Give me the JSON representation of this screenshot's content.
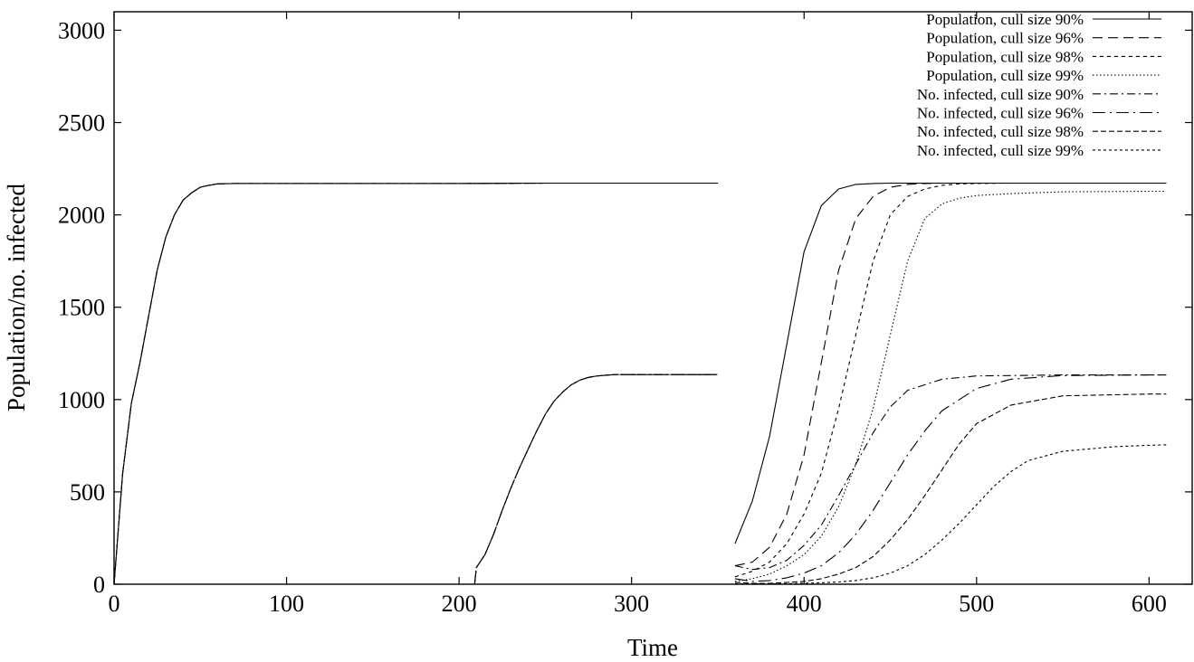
{
  "chart_data": {
    "type": "line",
    "title": "",
    "xlabel": "Time",
    "ylabel": "Population/no. infected",
    "xlim": [
      0,
      625
    ],
    "ylim": [
      0,
      3100
    ],
    "xticks": [
      0,
      100,
      200,
      300,
      400,
      500,
      600
    ],
    "yticks": [
      0,
      500,
      1000,
      1500,
      2000,
      2500,
      3000
    ],
    "grid": false,
    "legend_position": "top-right",
    "series": [
      {
        "name": "Population, cull size 90%",
        "dash": "none",
        "x": [
          0,
          5,
          10,
          15,
          20,
          25,
          30,
          35,
          40,
          45,
          50,
          55,
          60,
          70,
          80,
          100,
          150,
          200,
          250,
          300,
          350,
          350,
          360,
          370,
          380,
          390,
          400,
          410,
          420,
          430,
          440,
          450,
          500,
          550,
          600,
          610
        ],
        "y": [
          0,
          600,
          980,
          1200,
          1450,
          1700,
          1880,
          2000,
          2080,
          2120,
          2150,
          2160,
          2168,
          2170,
          2170,
          2170,
          2170,
          2170,
          2172,
          2172,
          2172,
          null,
          220,
          450,
          800,
          1300,
          1800,
          2050,
          2140,
          2165,
          2170,
          2172,
          2172,
          2172,
          2172,
          2172
        ]
      },
      {
        "name": "Population, cull size 96%",
        "dash": "11,6",
        "x": [
          0,
          5,
          10,
          15,
          20,
          25,
          30,
          35,
          40,
          45,
          50,
          55,
          60,
          70,
          80,
          100,
          150,
          200,
          250,
          300,
          350,
          350,
          360,
          370,
          380,
          390,
          400,
          410,
          420,
          430,
          440,
          450,
          460,
          470,
          480,
          500,
          550,
          600,
          610
        ],
        "y": [
          0,
          600,
          980,
          1200,
          1450,
          1700,
          1880,
          2000,
          2080,
          2120,
          2150,
          2160,
          2168,
          2170,
          2170,
          2170,
          2170,
          2170,
          2172,
          2172,
          2172,
          null,
          100,
          120,
          200,
          380,
          700,
          1200,
          1700,
          1980,
          2100,
          2150,
          2165,
          2170,
          2172,
          2172,
          2172,
          2172,
          2172
        ]
      },
      {
        "name": "Population, cull size 98%",
        "dash": "4,4",
        "x": [
          0,
          5,
          10,
          15,
          20,
          25,
          30,
          35,
          40,
          45,
          50,
          55,
          60,
          70,
          80,
          100,
          150,
          200,
          250,
          300,
          350,
          350,
          360,
          370,
          380,
          390,
          400,
          410,
          420,
          430,
          440,
          450,
          460,
          470,
          480,
          490,
          500,
          520,
          550,
          600,
          610
        ],
        "y": [
          0,
          600,
          980,
          1200,
          1450,
          1700,
          1880,
          2000,
          2080,
          2120,
          2150,
          2160,
          2168,
          2170,
          2170,
          2170,
          2170,
          2170,
          2172,
          2172,
          2172,
          null,
          40,
          70,
          120,
          220,
          380,
          600,
          950,
          1350,
          1750,
          2000,
          2100,
          2140,
          2160,
          2168,
          2170,
          2172,
          2172,
          2172,
          2172
        ]
      },
      {
        "name": "Population, cull size 99%",
        "dash": "1.5,2.5",
        "x": [
          0,
          5,
          10,
          15,
          20,
          25,
          30,
          35,
          40,
          45,
          50,
          55,
          60,
          70,
          80,
          100,
          150,
          200,
          250,
          300,
          350,
          350,
          360,
          370,
          380,
          390,
          400,
          410,
          420,
          430,
          440,
          450,
          460,
          470,
          480,
          490,
          500,
          520,
          550,
          600,
          610
        ],
        "y": [
          0,
          600,
          980,
          1200,
          1450,
          1700,
          1880,
          2000,
          2080,
          2120,
          2150,
          2160,
          2168,
          2170,
          2170,
          2170,
          2170,
          2170,
          2172,
          2172,
          2172,
          null,
          15,
          30,
          55,
          100,
          160,
          260,
          420,
          650,
          950,
          1350,
          1750,
          1980,
          2060,
          2090,
          2105,
          2115,
          2125,
          2128,
          2128
        ]
      },
      {
        "name": "No. infected, cull size 90%",
        "dash": "9,4,2,4",
        "x": [
          209,
          210,
          215,
          220,
          225,
          230,
          235,
          240,
          245,
          250,
          255,
          260,
          265,
          270,
          275,
          280,
          290,
          300,
          320,
          350,
          350,
          360,
          370,
          380,
          390,
          400,
          410,
          420,
          430,
          440,
          450,
          460,
          480,
          500,
          550,
          600,
          610
        ],
        "y": [
          0,
          90,
          160,
          270,
          400,
          520,
          630,
          730,
          830,
          920,
          990,
          1040,
          1080,
          1105,
          1120,
          1128,
          1135,
          1135,
          1135,
          1135,
          null,
          100,
          80,
          90,
          130,
          210,
          320,
          480,
          650,
          820,
          960,
          1050,
          1110,
          1128,
          1133,
          1133,
          1133
        ]
      },
      {
        "name": "No. infected, cull size 96%",
        "dash": "14,5,2,5",
        "x": [
          209,
          210,
          215,
          220,
          225,
          230,
          235,
          240,
          245,
          250,
          255,
          260,
          265,
          270,
          275,
          280,
          290,
          300,
          320,
          350,
          350,
          360,
          370,
          380,
          390,
          400,
          410,
          420,
          430,
          440,
          450,
          460,
          470,
          480,
          500,
          520,
          550,
          600,
          610
        ],
        "y": [
          0,
          90,
          160,
          270,
          400,
          520,
          630,
          730,
          830,
          920,
          990,
          1040,
          1080,
          1105,
          1120,
          1128,
          1135,
          1135,
          1135,
          1135,
          null,
          30,
          15,
          20,
          35,
          60,
          100,
          170,
          270,
          400,
          550,
          700,
          830,
          940,
          1060,
          1110,
          1130,
          1133,
          1133
        ]
      },
      {
        "name": "No. infected, cull size 98%",
        "dash": "6,3",
        "x": [
          209,
          210,
          215,
          220,
          225,
          230,
          235,
          240,
          245,
          250,
          255,
          260,
          265,
          270,
          275,
          280,
          290,
          300,
          320,
          350,
          350,
          360,
          370,
          380,
          390,
          400,
          410,
          420,
          430,
          440,
          450,
          460,
          470,
          480,
          490,
          500,
          520,
          550,
          600,
          610
        ],
        "y": [
          0,
          90,
          160,
          270,
          400,
          520,
          630,
          730,
          830,
          920,
          990,
          1040,
          1080,
          1105,
          1120,
          1128,
          1135,
          1135,
          1135,
          1135,
          null,
          10,
          5,
          5,
          10,
          15,
          30,
          55,
          90,
          150,
          240,
          350,
          480,
          620,
          760,
          870,
          970,
          1020,
          1030,
          1030
        ]
      },
      {
        "name": "No. infected, cull size 99%",
        "dash": "3,3",
        "x": [
          209,
          210,
          215,
          220,
          225,
          230,
          235,
          240,
          245,
          250,
          255,
          260,
          265,
          270,
          275,
          280,
          290,
          300,
          320,
          350,
          350,
          360,
          370,
          380,
          390,
          400,
          410,
          420,
          430,
          440,
          450,
          460,
          470,
          480,
          490,
          500,
          510,
          520,
          530,
          550,
          580,
          600,
          610
        ],
        "y": [
          0,
          90,
          160,
          270,
          400,
          520,
          630,
          730,
          830,
          920,
          990,
          1040,
          1080,
          1105,
          1120,
          1128,
          1135,
          1135,
          1135,
          1135,
          null,
          2,
          2,
          2,
          3,
          5,
          8,
          12,
          20,
          35,
          60,
          100,
          160,
          240,
          330,
          430,
          530,
          610,
          670,
          720,
          745,
          752,
          755
        ]
      }
    ]
  }
}
